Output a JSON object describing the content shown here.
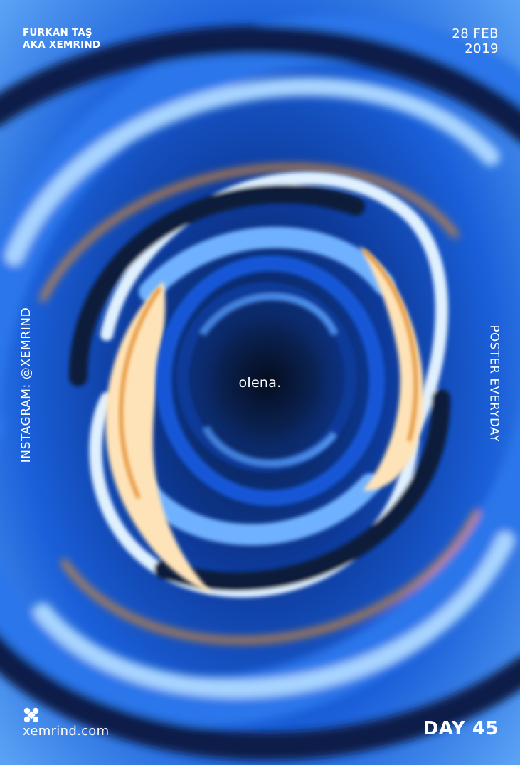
{
  "author": {
    "line1": "FURKAN TAŞ",
    "line2": "AKA XEMRIND"
  },
  "date": {
    "line1": "28 FEB",
    "line2": "2019"
  },
  "center_word": "olena.",
  "side_left": "INSTAGRAM: @XEMRIND",
  "side_right": "POSTER EVERYDAY",
  "logo": {
    "icon": "x-mark-icon"
  },
  "footer": {
    "site": "xemrind.com",
    "day": "DAY 45"
  },
  "colors": {
    "deep_navy": "#0a1a3a",
    "royal_blue": "#1457d6",
    "sky_blue": "#6fb1ff",
    "ice": "#dff0ff",
    "peach": "#ffe3b8",
    "orange": "#e08a2a",
    "text": "#ffffff"
  }
}
